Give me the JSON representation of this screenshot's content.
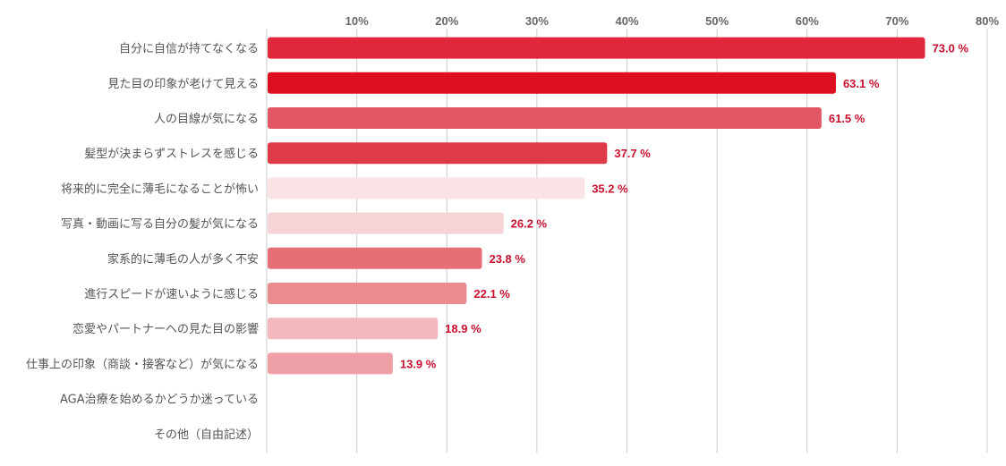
{
  "chart_data": {
    "type": "bar",
    "orientation": "horizontal",
    "title": "",
    "xlabel": "",
    "ylabel": "",
    "xlim": [
      0,
      80
    ],
    "grid": true,
    "tick_labels": [
      "10%",
      "20%",
      "30%",
      "40%",
      "50%",
      "60%",
      "70%",
      "80%"
    ],
    "tick_values": [
      10,
      20,
      30,
      40,
      50,
      60,
      70,
      80
    ],
    "tick_position": "top",
    "categories": [
      "自分に自信が持てなくなる",
      "見た目の印象が老けて見える",
      "人の目線が気になる",
      "髪型が決まらずストレスを感じる",
      "将来的に完全に薄毛になることが怖い",
      "写真・動画に写る自分の髪が気になる",
      "家系的に薄毛の人が多く不安",
      "進行スピードが速いように感じる",
      "恋愛やパートナーへの見た目の影響",
      "仕事上の印象（商談・接客など）が気になる",
      "AGA治療を始めるかどうか迷っている",
      "その他（自由記述）"
    ],
    "values": [
      73.0,
      63.1,
      61.5,
      37.7,
      35.2,
      26.2,
      23.8,
      22.1,
      18.9,
      13.9,
      null,
      null
    ],
    "data_labels": [
      "73.0 %",
      "63.1 %",
      "61.5 %",
      "37.7 %",
      "35.2 %",
      "26.2 %",
      "23.8 %",
      "22.1 %",
      "18.9 %",
      "13.9 %",
      "",
      ""
    ],
    "bar_colors": [
      "#e0283a",
      "#dc0e1f",
      "#e35663",
      "#df3a48",
      "#fae3e4",
      "#f6d3d6",
      "#e66e76",
      "#ea8b90",
      "#f2b8bc",
      "#eea0a6",
      "#ffffff",
      "#ffffff"
    ],
    "label_color": "#c8102e"
  }
}
